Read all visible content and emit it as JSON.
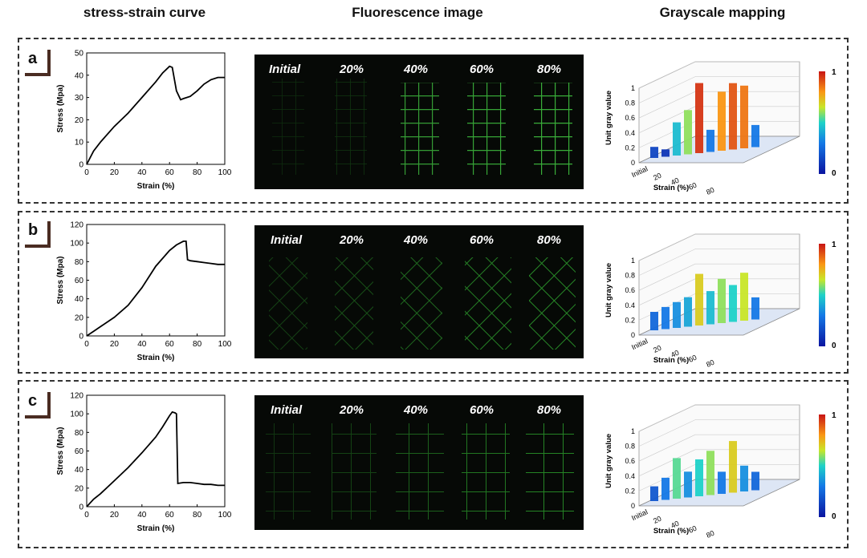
{
  "headers": {
    "col1": "stress-strain curve",
    "col2": "Fluorescence image",
    "col3": "Grayscale mapping"
  },
  "panels": [
    {
      "tag": "a",
      "image_labels": [
        "Initial",
        "20%",
        "40%",
        "60%",
        "80%"
      ]
    },
    {
      "tag": "b",
      "image_labels": [
        "Initial",
        "20%",
        "40%",
        "60%",
        "80%"
      ]
    },
    {
      "tag": "c",
      "image_labels": [
        "Initial",
        "20%",
        "40%",
        "60%",
        "80%"
      ]
    }
  ],
  "grayscale": {
    "zlabel": "Unit gray value",
    "xlabel": "Strain (%)",
    "xticks": [
      "Initial",
      "20",
      "40",
      "60",
      "80"
    ],
    "zticks": [
      "0",
      "0.2",
      "0.4",
      "0.6",
      "0.8",
      "1"
    ],
    "colorbar": {
      "max": "1",
      "min": "0"
    }
  },
  "chart_data": [
    {
      "type": "line",
      "id": "a",
      "xlabel": "Strain (%)",
      "ylabel": "Stress (Mpa)",
      "xlim": [
        0,
        100
      ],
      "ylim": [
        0,
        50
      ],
      "xticks": [
        0,
        20,
        40,
        60,
        80,
        100
      ],
      "yticks": [
        0,
        10,
        20,
        30,
        40,
        50
      ],
      "x": [
        0,
        5,
        10,
        20,
        30,
        40,
        50,
        55,
        60,
        62,
        65,
        68,
        70,
        75,
        80,
        85,
        90,
        95,
        100
      ],
      "y": [
        0,
        6,
        10,
        17,
        23,
        30,
        37,
        41,
        44,
        43.5,
        33,
        29,
        29.5,
        30.5,
        33,
        36,
        38,
        39,
        39
      ]
    },
    {
      "type": "line",
      "id": "b",
      "xlabel": "Strain (%)",
      "ylabel": "Stress (Mpa)",
      "xlim": [
        0,
        100
      ],
      "ylim": [
        0,
        120
      ],
      "xticks": [
        0,
        20,
        40,
        60,
        80,
        100
      ],
      "yticks": [
        0,
        20,
        40,
        60,
        80,
        100,
        120
      ],
      "x": [
        0,
        5,
        10,
        20,
        30,
        40,
        50,
        60,
        65,
        70,
        72,
        73,
        75,
        80,
        85,
        90,
        95,
        100
      ],
      "y": [
        0,
        5,
        10,
        20,
        33,
        52,
        75,
        92,
        98,
        102,
        102,
        82,
        81,
        80,
        79,
        78,
        77,
        77
      ]
    },
    {
      "type": "line",
      "id": "c",
      "xlabel": "Strain (%)",
      "ylabel": "Stress (Mpa)",
      "xlim": [
        0,
        100
      ],
      "ylim": [
        0,
        120
      ],
      "xticks": [
        0,
        20,
        40,
        60,
        80,
        100
      ],
      "yticks": [
        0,
        20,
        40,
        60,
        80,
        100,
        120
      ],
      "x": [
        0,
        5,
        10,
        20,
        30,
        40,
        50,
        55,
        60,
        62,
        64,
        65,
        66,
        70,
        75,
        80,
        85,
        90,
        95,
        100
      ],
      "y": [
        0,
        8,
        14,
        28,
        42,
        58,
        75,
        86,
        98,
        102,
        101,
        100,
        25,
        26,
        26,
        25,
        24,
        24,
        23,
        23
      ]
    }
  ]
}
